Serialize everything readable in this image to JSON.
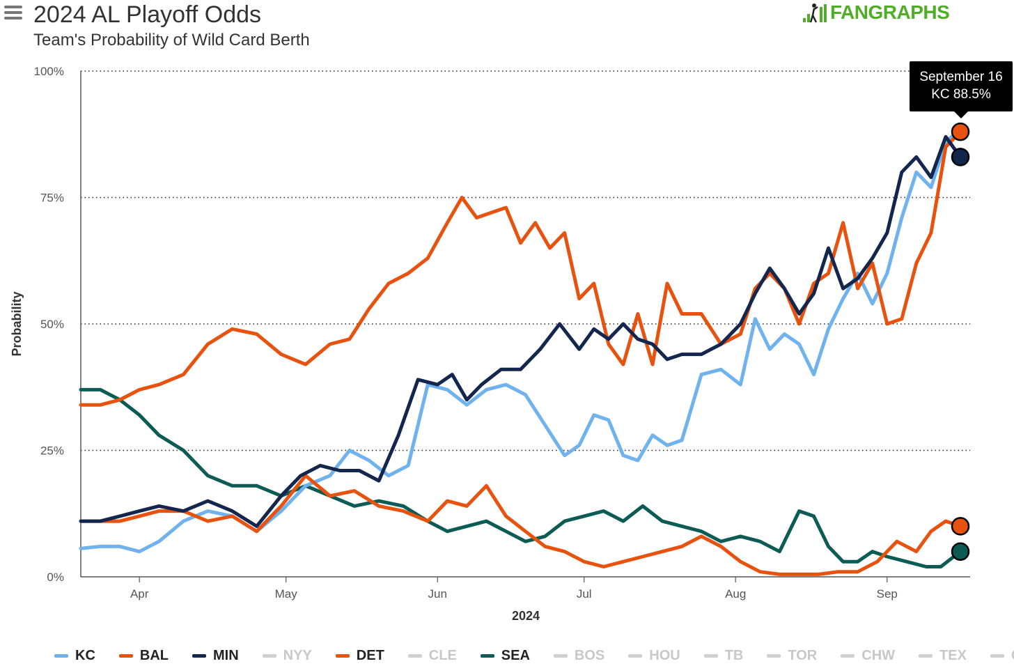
{
  "header": {
    "title": "2024 AL Playoff Odds",
    "subtitle": "Team's Probability of Wild Card Berth",
    "logo_text": "FANGRAPHS"
  },
  "tooltip": {
    "date": "September 16",
    "value": "KC 88.5%"
  },
  "chart_data": {
    "type": "line",
    "title": "2024 AL Playoff Odds",
    "subtitle": "Team's Probability of Wild Card Berth",
    "xlabel": "2024",
    "ylabel": "Probability",
    "x_range": [
      "2024-03-20",
      "2024-09-16"
    ],
    "ylim": [
      0,
      100
    ],
    "y_ticks": [
      {
        "value": 0,
        "label": "0%"
      },
      {
        "value": 25,
        "label": "25%"
      },
      {
        "value": 50,
        "label": "50%"
      },
      {
        "value": 75,
        "label": "75%"
      },
      {
        "value": 100,
        "label": "100%"
      }
    ],
    "x_ticks": [
      {
        "date": "2024-04-01",
        "label": "Apr"
      },
      {
        "date": "2024-05-01",
        "label": "May"
      },
      {
        "date": "2024-06-01",
        "label": "Jun"
      },
      {
        "date": "2024-07-01",
        "label": "Jul"
      },
      {
        "date": "2024-08-01",
        "label": "Aug"
      },
      {
        "date": "2024-09-01",
        "label": "Sep"
      }
    ],
    "grid": "horizontal dotted",
    "legend_position": "bottom",
    "series": [
      {
        "name": "KC",
        "color": "#6fb2ee",
        "active": true,
        "end_marker": false,
        "points": [
          [
            "2024-03-20",
            5.6
          ],
          [
            "2024-03-24",
            6
          ],
          [
            "2024-03-28",
            6
          ],
          [
            "2024-04-01",
            5
          ],
          [
            "2024-04-05",
            7
          ],
          [
            "2024-04-10",
            11
          ],
          [
            "2024-04-15",
            13
          ],
          [
            "2024-04-20",
            12
          ],
          [
            "2024-04-25",
            9
          ],
          [
            "2024-04-30",
            13
          ],
          [
            "2024-05-05",
            18
          ],
          [
            "2024-05-10",
            20
          ],
          [
            "2024-05-14",
            25
          ],
          [
            "2024-05-18",
            23
          ],
          [
            "2024-05-22",
            20
          ],
          [
            "2024-05-26",
            22
          ],
          [
            "2024-05-30",
            38
          ],
          [
            "2024-06-03",
            37
          ],
          [
            "2024-06-07",
            34
          ],
          [
            "2024-06-11",
            37
          ],
          [
            "2024-06-15",
            38
          ],
          [
            "2024-06-19",
            36
          ],
          [
            "2024-06-23",
            30
          ],
          [
            "2024-06-27",
            24
          ],
          [
            "2024-06-30",
            26
          ],
          [
            "2024-07-03",
            32
          ],
          [
            "2024-07-06",
            31
          ],
          [
            "2024-07-09",
            24
          ],
          [
            "2024-07-12",
            23
          ],
          [
            "2024-07-15",
            28
          ],
          [
            "2024-07-18",
            26
          ],
          [
            "2024-07-21",
            27
          ],
          [
            "2024-07-25",
            40
          ],
          [
            "2024-07-29",
            41
          ],
          [
            "2024-08-02",
            38
          ],
          [
            "2024-08-05",
            51
          ],
          [
            "2024-08-08",
            45
          ],
          [
            "2024-08-11",
            48
          ],
          [
            "2024-08-14",
            46
          ],
          [
            "2024-08-17",
            40
          ],
          [
            "2024-08-20",
            49
          ],
          [
            "2024-08-23",
            55
          ],
          [
            "2024-08-26",
            60
          ],
          [
            "2024-08-29",
            54
          ],
          [
            "2024-09-01",
            60
          ],
          [
            "2024-09-04",
            71
          ],
          [
            "2024-09-07",
            80
          ],
          [
            "2024-09-10",
            77
          ],
          [
            "2024-09-13",
            86
          ],
          [
            "2024-09-16",
            88.5
          ]
        ]
      },
      {
        "name": "BAL",
        "color": "#e8520f",
        "active": true,
        "end_marker": true,
        "points": [
          [
            "2024-03-20",
            34
          ],
          [
            "2024-03-24",
            34
          ],
          [
            "2024-03-28",
            35
          ],
          [
            "2024-04-01",
            37
          ],
          [
            "2024-04-05",
            38
          ],
          [
            "2024-04-10",
            40
          ],
          [
            "2024-04-15",
            46
          ],
          [
            "2024-04-20",
            49
          ],
          [
            "2024-04-25",
            48
          ],
          [
            "2024-04-30",
            44
          ],
          [
            "2024-05-05",
            42
          ],
          [
            "2024-05-10",
            46
          ],
          [
            "2024-05-14",
            47
          ],
          [
            "2024-05-18",
            53
          ],
          [
            "2024-05-22",
            58
          ],
          [
            "2024-05-26",
            60
          ],
          [
            "2024-05-30",
            63
          ],
          [
            "2024-06-03",
            70
          ],
          [
            "2024-06-06",
            75
          ],
          [
            "2024-06-09",
            71
          ],
          [
            "2024-06-12",
            72
          ],
          [
            "2024-06-15",
            73
          ],
          [
            "2024-06-18",
            66
          ],
          [
            "2024-06-21",
            70
          ],
          [
            "2024-06-24",
            65
          ],
          [
            "2024-06-27",
            68
          ],
          [
            "2024-06-30",
            55
          ],
          [
            "2024-07-03",
            58
          ],
          [
            "2024-07-06",
            46
          ],
          [
            "2024-07-09",
            42
          ],
          [
            "2024-07-12",
            52
          ],
          [
            "2024-07-15",
            42
          ],
          [
            "2024-07-18",
            58
          ],
          [
            "2024-07-21",
            52
          ],
          [
            "2024-07-25",
            52
          ],
          [
            "2024-07-29",
            46
          ],
          [
            "2024-08-02",
            48
          ],
          [
            "2024-08-05",
            57
          ],
          [
            "2024-08-08",
            60
          ],
          [
            "2024-08-11",
            57
          ],
          [
            "2024-08-14",
            50
          ],
          [
            "2024-08-17",
            58
          ],
          [
            "2024-08-20",
            60
          ],
          [
            "2024-08-23",
            70
          ],
          [
            "2024-08-26",
            57
          ],
          [
            "2024-08-29",
            62
          ],
          [
            "2024-09-01",
            50
          ],
          [
            "2024-09-04",
            51
          ],
          [
            "2024-09-07",
            62
          ],
          [
            "2024-09-10",
            68
          ],
          [
            "2024-09-13",
            85
          ],
          [
            "2024-09-16",
            88
          ]
        ]
      },
      {
        "name": "MIN",
        "color": "#13264d",
        "active": true,
        "end_marker": true,
        "points": [
          [
            "2024-03-20",
            11
          ],
          [
            "2024-03-24",
            11
          ],
          [
            "2024-03-28",
            12
          ],
          [
            "2024-04-01",
            13
          ],
          [
            "2024-04-05",
            14
          ],
          [
            "2024-04-10",
            13
          ],
          [
            "2024-04-15",
            15
          ],
          [
            "2024-04-20",
            13
          ],
          [
            "2024-04-25",
            10
          ],
          [
            "2024-04-30",
            16
          ],
          [
            "2024-05-04",
            20
          ],
          [
            "2024-05-08",
            22
          ],
          [
            "2024-05-12",
            21
          ],
          [
            "2024-05-16",
            21
          ],
          [
            "2024-05-20",
            19
          ],
          [
            "2024-05-24",
            28
          ],
          [
            "2024-05-28",
            39
          ],
          [
            "2024-06-01",
            38
          ],
          [
            "2024-06-04",
            40
          ],
          [
            "2024-06-07",
            35
          ],
          [
            "2024-06-10",
            38
          ],
          [
            "2024-06-14",
            41
          ],
          [
            "2024-06-18",
            41
          ],
          [
            "2024-06-22",
            45
          ],
          [
            "2024-06-26",
            50
          ],
          [
            "2024-06-30",
            45
          ],
          [
            "2024-07-03",
            49
          ],
          [
            "2024-07-06",
            47
          ],
          [
            "2024-07-09",
            50
          ],
          [
            "2024-07-12",
            47
          ],
          [
            "2024-07-15",
            46
          ],
          [
            "2024-07-18",
            43
          ],
          [
            "2024-07-21",
            44
          ],
          [
            "2024-07-25",
            44
          ],
          [
            "2024-07-29",
            46
          ],
          [
            "2024-08-02",
            50
          ],
          [
            "2024-08-05",
            56
          ],
          [
            "2024-08-08",
            61
          ],
          [
            "2024-08-11",
            57
          ],
          [
            "2024-08-14",
            52
          ],
          [
            "2024-08-17",
            56
          ],
          [
            "2024-08-20",
            65
          ],
          [
            "2024-08-23",
            57
          ],
          [
            "2024-08-26",
            59
          ],
          [
            "2024-08-29",
            63
          ],
          [
            "2024-09-01",
            68
          ],
          [
            "2024-09-04",
            80
          ],
          [
            "2024-09-07",
            83
          ],
          [
            "2024-09-10",
            79
          ],
          [
            "2024-09-13",
            87
          ],
          [
            "2024-09-16",
            83
          ]
        ]
      },
      {
        "name": "NYY",
        "color": "#d0d0d0",
        "active": false,
        "end_marker": false,
        "points": []
      },
      {
        "name": "DET",
        "color": "#e8520f",
        "active": true,
        "end_marker": true,
        "points": [
          [
            "2024-03-20",
            11
          ],
          [
            "2024-03-24",
            11
          ],
          [
            "2024-03-28",
            11
          ],
          [
            "2024-04-01",
            12
          ],
          [
            "2024-04-05",
            13
          ],
          [
            "2024-04-10",
            13
          ],
          [
            "2024-04-15",
            11
          ],
          [
            "2024-04-20",
            12
          ],
          [
            "2024-04-25",
            9
          ],
          [
            "2024-04-30",
            14
          ],
          [
            "2024-05-05",
            20
          ],
          [
            "2024-05-10",
            16
          ],
          [
            "2024-05-15",
            17
          ],
          [
            "2024-05-20",
            14
          ],
          [
            "2024-05-25",
            13
          ],
          [
            "2024-05-30",
            11
          ],
          [
            "2024-06-03",
            15
          ],
          [
            "2024-06-07",
            14
          ],
          [
            "2024-06-11",
            18
          ],
          [
            "2024-06-15",
            12
          ],
          [
            "2024-06-19",
            9
          ],
          [
            "2024-06-23",
            6
          ],
          [
            "2024-06-27",
            5
          ],
          [
            "2024-07-01",
            3
          ],
          [
            "2024-07-05",
            2
          ],
          [
            "2024-07-09",
            3
          ],
          [
            "2024-07-13",
            4
          ],
          [
            "2024-07-17",
            5
          ],
          [
            "2024-07-21",
            6
          ],
          [
            "2024-07-25",
            8
          ],
          [
            "2024-07-29",
            6
          ],
          [
            "2024-08-02",
            3
          ],
          [
            "2024-08-06",
            1
          ],
          [
            "2024-08-10",
            0.5
          ],
          [
            "2024-08-14",
            0.5
          ],
          [
            "2024-08-18",
            0.5
          ],
          [
            "2024-08-22",
            1
          ],
          [
            "2024-08-26",
            1
          ],
          [
            "2024-08-30",
            3
          ],
          [
            "2024-09-03",
            7
          ],
          [
            "2024-09-07",
            5
          ],
          [
            "2024-09-10",
            9
          ],
          [
            "2024-09-13",
            11
          ],
          [
            "2024-09-16",
            10
          ]
        ]
      },
      {
        "name": "CLE",
        "color": "#d0d0d0",
        "active": false,
        "end_marker": false,
        "points": []
      },
      {
        "name": "SEA",
        "color": "#0c5b55",
        "active": true,
        "end_marker": true,
        "points": [
          [
            "2024-03-20",
            37
          ],
          [
            "2024-03-24",
            37
          ],
          [
            "2024-03-28",
            35
          ],
          [
            "2024-04-01",
            32
          ],
          [
            "2024-04-05",
            28
          ],
          [
            "2024-04-10",
            25
          ],
          [
            "2024-04-15",
            20
          ],
          [
            "2024-04-20",
            18
          ],
          [
            "2024-04-25",
            18
          ],
          [
            "2024-04-30",
            16
          ],
          [
            "2024-05-05",
            18
          ],
          [
            "2024-05-10",
            16
          ],
          [
            "2024-05-15",
            14
          ],
          [
            "2024-05-20",
            15
          ],
          [
            "2024-05-25",
            14
          ],
          [
            "2024-05-30",
            11
          ],
          [
            "2024-06-03",
            9
          ],
          [
            "2024-06-07",
            10
          ],
          [
            "2024-06-11",
            11
          ],
          [
            "2024-06-15",
            9
          ],
          [
            "2024-06-19",
            7
          ],
          [
            "2024-06-23",
            8
          ],
          [
            "2024-06-27",
            11
          ],
          [
            "2024-07-01",
            12
          ],
          [
            "2024-07-05",
            13
          ],
          [
            "2024-07-09",
            11
          ],
          [
            "2024-07-13",
            14
          ],
          [
            "2024-07-17",
            11
          ],
          [
            "2024-07-21",
            10
          ],
          [
            "2024-07-25",
            9
          ],
          [
            "2024-07-29",
            7
          ],
          [
            "2024-08-02",
            8
          ],
          [
            "2024-08-06",
            7
          ],
          [
            "2024-08-10",
            5
          ],
          [
            "2024-08-14",
            13
          ],
          [
            "2024-08-17",
            12
          ],
          [
            "2024-08-20",
            6
          ],
          [
            "2024-08-23",
            3
          ],
          [
            "2024-08-26",
            3
          ],
          [
            "2024-08-29",
            5
          ],
          [
            "2024-09-01",
            4
          ],
          [
            "2024-09-05",
            3
          ],
          [
            "2024-09-09",
            2
          ],
          [
            "2024-09-12",
            2
          ],
          [
            "2024-09-16",
            5
          ]
        ]
      },
      {
        "name": "BOS",
        "color": "#d0d0d0",
        "active": false,
        "end_marker": false,
        "points": []
      },
      {
        "name": "HOU",
        "color": "#d0d0d0",
        "active": false,
        "end_marker": false,
        "points": []
      },
      {
        "name": "TB",
        "color": "#d0d0d0",
        "active": false,
        "end_marker": false,
        "points": []
      },
      {
        "name": "TOR",
        "color": "#d0d0d0",
        "active": false,
        "end_marker": false,
        "points": []
      },
      {
        "name": "CHW",
        "color": "#d0d0d0",
        "active": false,
        "end_marker": false,
        "points": []
      },
      {
        "name": "TEX",
        "color": "#d0d0d0",
        "active": false,
        "end_marker": false,
        "points": []
      },
      {
        "name": "OAK",
        "color": "#d0d0d0",
        "active": false,
        "end_marker": false,
        "points": []
      }
    ]
  },
  "colors": {
    "inactive_text": "#c8c8c8",
    "active_text": "#222222",
    "logo_green": "#50ae26"
  }
}
